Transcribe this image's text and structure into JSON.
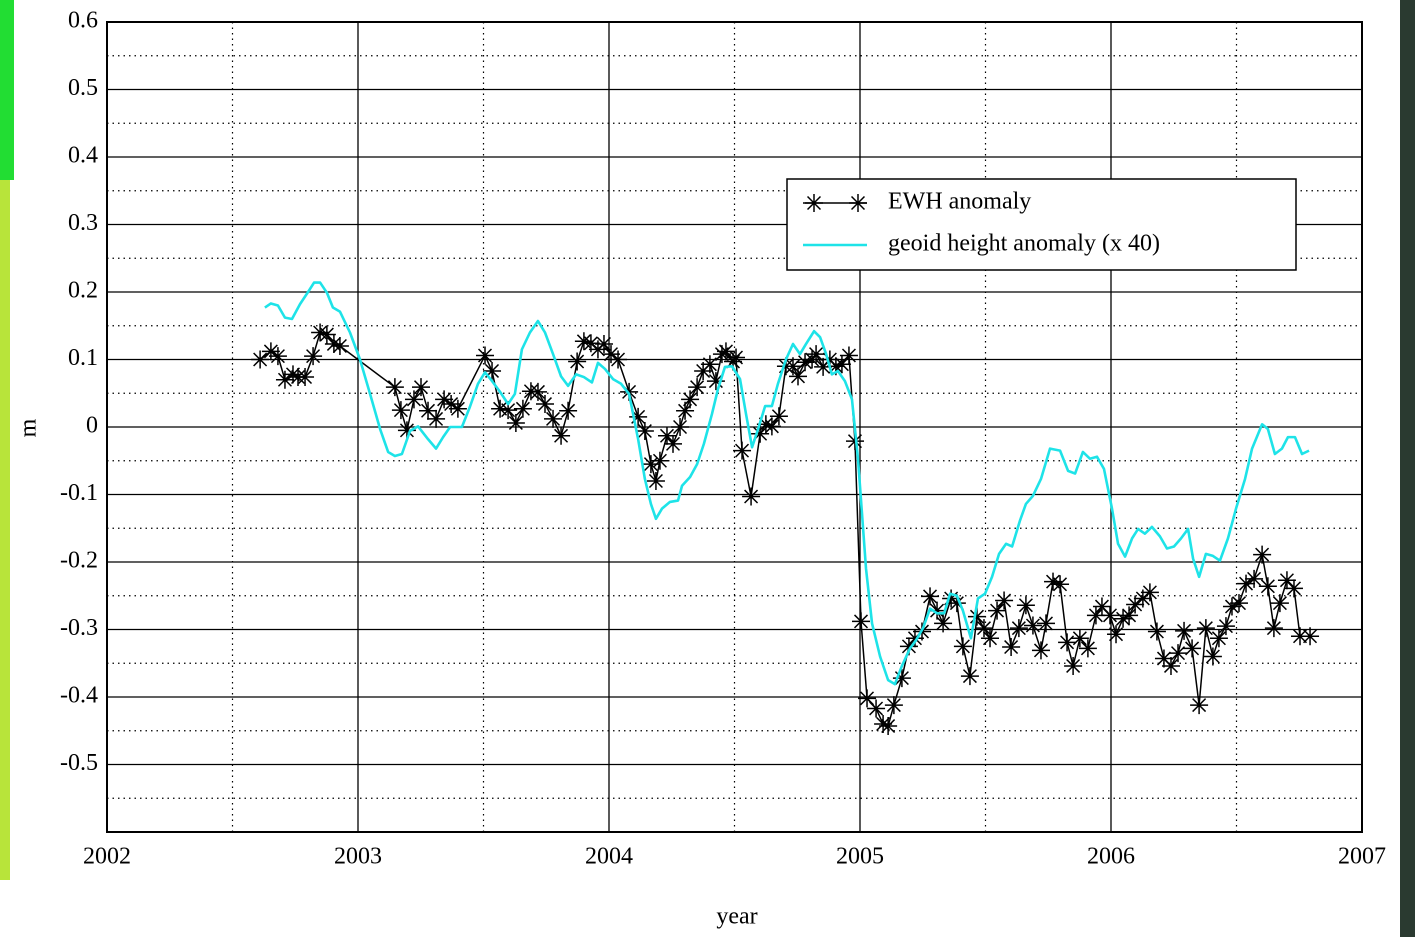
{
  "chart_data": {
    "type": "line",
    "x_label": "year",
    "y_label": "m",
    "xlim": [
      2002,
      2007
    ],
    "xticks": [
      2002,
      2003,
      2004,
      2005,
      2006,
      2007
    ],
    "ylim": [
      -0.6,
      0.6
    ],
    "yticks": [
      -0.5,
      -0.4,
      -0.3,
      -0.2,
      -0.1,
      0,
      0.1,
      0.2,
      0.3,
      0.4,
      0.5,
      0.6
    ],
    "grid": true,
    "minor_grid": true,
    "legend": "upper right",
    "series": [
      {
        "name": "EWH anomaly",
        "color": "#000000",
        "marker": "star",
        "x": [
          2002.61,
          2002.653,
          2002.681,
          2002.709,
          2002.741,
          2002.761,
          2002.789,
          2002.821,
          2002.849,
          2002.876,
          2002.904,
          2002.928,
          2003.147,
          2003.171,
          2003.195,
          2003.223,
          2003.251,
          2003.279,
          2003.311,
          2003.343,
          2003.371,
          2003.398,
          2003.506,
          2003.534,
          2003.566,
          2003.598,
          2003.629,
          2003.657,
          2003.689,
          2003.717,
          2003.745,
          2003.777,
          2003.809,
          2003.837,
          2003.873,
          2003.9,
          2003.928,
          2003.956,
          2003.98,
          2004.008,
          2004.036,
          2004.08,
          2004.116,
          2004.143,
          2004.167,
          2004.187,
          2004.203,
          2004.231,
          2004.255,
          2004.283,
          2004.303,
          2004.323,
          2004.351,
          2004.375,
          2004.402,
          2004.426,
          2004.45,
          2004.466,
          2004.494,
          2004.506,
          2004.53,
          2004.566,
          2004.602,
          2004.625,
          2004.649,
          2004.677,
          2004.705,
          2004.733,
          2004.753,
          2004.781,
          2004.809,
          2004.825,
          2004.853,
          2004.88,
          2004.904,
          2004.928,
          2004.956,
          2004.98,
          2005.004,
          2005.028,
          2005.064,
          2005.092,
          2005.112,
          2005.135,
          2005.167,
          2005.195,
          2005.219,
          2005.247,
          2005.279,
          2005.307,
          2005.331,
          2005.363,
          2005.386,
          2005.41,
          2005.438,
          2005.466,
          2005.494,
          2005.518,
          2005.546,
          2005.574,
          2005.602,
          2005.633,
          2005.661,
          2005.689,
          2005.721,
          2005.741,
          2005.769,
          2005.797,
          2005.825,
          2005.849,
          2005.876,
          2005.908,
          2005.94,
          2005.964,
          2005.996,
          2006.02,
          2006.048,
          2006.072,
          2006.096,
          2006.127,
          2006.155,
          2006.183,
          2006.211,
          2006.239,
          2006.267,
          2006.291,
          2006.323,
          2006.351,
          2006.378,
          2006.406,
          2006.43,
          2006.458,
          2006.482,
          2006.51,
          2006.538,
          2006.57,
          2006.602,
          2006.625,
          2006.649,
          2006.673,
          2006.701,
          2006.729,
          2006.753,
          2006.793
        ],
        "values": [
          0.1,
          0.112,
          0.105,
          0.07,
          0.078,
          0.074,
          0.074,
          0.105,
          0.14,
          0.137,
          0.123,
          0.12,
          0.059,
          0.025,
          -0.005,
          0.041,
          0.059,
          0.024,
          0.012,
          0.041,
          0.034,
          0.027,
          0.106,
          0.083,
          0.027,
          0.025,
          0.006,
          0.027,
          0.053,
          0.052,
          0.034,
          0.012,
          -0.013,
          0.024,
          0.097,
          0.127,
          0.124,
          0.115,
          0.123,
          0.108,
          0.1,
          0.052,
          0.015,
          -0.006,
          -0.055,
          -0.08,
          -0.05,
          -0.013,
          -0.025,
          0,
          0.024,
          0.041,
          0.059,
          0.083,
          0.093,
          0.068,
          0.108,
          0.112,
          0.097,
          0.103,
          -0.035,
          -0.103,
          -0.01,
          0.004,
          0.001,
          0.016,
          0.09,
          0.09,
          0.075,
          0.096,
          0.1,
          0.108,
          0.089,
          0.1,
          0.09,
          0.093,
          0.106,
          -0.021,
          -0.288,
          -0.402,
          -0.417,
          -0.44,
          -0.443,
          -0.412,
          -0.372,
          -0.325,
          -0.313,
          -0.303,
          -0.251,
          -0.272,
          -0.291,
          -0.254,
          -0.261,
          -0.325,
          -0.369,
          -0.281,
          -0.298,
          -0.313,
          -0.272,
          -0.257,
          -0.326,
          -0.298,
          -0.264,
          -0.294,
          -0.331,
          -0.291,
          -0.229,
          -0.233,
          -0.319,
          -0.354,
          -0.313,
          -0.328,
          -0.279,
          -0.266,
          -0.279,
          -0.307,
          -0.284,
          -0.279,
          -0.263,
          -0.254,
          -0.245,
          -0.303,
          -0.343,
          -0.354,
          -0.335,
          -0.302,
          -0.328,
          -0.412,
          -0.298,
          -0.34,
          -0.313,
          -0.295,
          -0.266,
          -0.261,
          -0.232,
          -0.225,
          -0.189,
          -0.236,
          -0.298,
          -0.261,
          -0.227,
          -0.239,
          -0.31,
          -0.31
        ]
      },
      {
        "name": "geoid height anomaly (x 40)",
        "color": "#1ee3e8",
        "x": [
          2002.629,
          2002.653,
          2002.681,
          2002.709,
          2002.737,
          2002.769,
          2002.801,
          2002.825,
          2002.849,
          2002.876,
          2002.9,
          2002.928,
          2002.968,
          2003.008,
          2003.048,
          2003.088,
          2003.12,
          2003.147,
          2003.175,
          2003.207,
          2003.239,
          2003.279,
          2003.311,
          2003.339,
          2003.367,
          2003.414,
          2003.446,
          2003.478,
          2003.506,
          2003.534,
          2003.566,
          2003.598,
          2003.625,
          2003.653,
          2003.685,
          2003.717,
          2003.745,
          2003.777,
          2003.809,
          2003.837,
          2003.869,
          2003.9,
          2003.932,
          2003.956,
          2003.984,
          2004.016,
          2004.048,
          2004.08,
          2004.116,
          2004.143,
          2004.167,
          2004.187,
          2004.211,
          2004.243,
          2004.275,
          2004.291,
          2004.323,
          2004.351,
          2004.378,
          2004.41,
          2004.434,
          2004.462,
          2004.49,
          2004.522,
          2004.546,
          2004.57,
          2004.594,
          2004.622,
          2004.649,
          2004.673,
          2004.705,
          2004.733,
          2004.761,
          2004.785,
          2004.817,
          2004.841,
          2004.865,
          2004.888,
          2004.912,
          2004.94,
          2004.968,
          2004.992,
          2005.024,
          2005.048,
          2005.08,
          2005.112,
          2005.139,
          2005.167,
          2005.199,
          2005.223,
          2005.251,
          2005.279,
          2005.307,
          2005.335,
          2005.359,
          2005.386,
          2005.41,
          2005.442,
          2005.47,
          2005.498,
          2005.526,
          2005.554,
          2005.582,
          2005.606,
          2005.637,
          2005.661,
          2005.689,
          2005.721,
          2005.757,
          2005.797,
          2005.829,
          2005.857,
          2005.888,
          2005.916,
          2005.944,
          2005.972,
          2006.004,
          2006.028,
          2006.056,
          2006.084,
          2006.108,
          2006.135,
          2006.163,
          2006.195,
          2006.223,
          2006.251,
          2006.279,
          2006.307,
          2006.327,
          2006.351,
          2006.378,
          2006.406,
          2006.434,
          2006.466,
          2006.498,
          2006.534,
          2006.562,
          2006.602,
          2006.625,
          2006.653,
          2006.681,
          2006.705,
          2006.733,
          2006.761,
          2006.789
        ],
        "values": [
          0.177,
          0.183,
          0.18,
          0.162,
          0.16,
          0.182,
          0.2,
          0.214,
          0.214,
          0.199,
          0.177,
          0.171,
          0.14,
          0.1,
          0.049,
          -0.003,
          -0.037,
          -0.043,
          -0.04,
          -0.006,
          0.001,
          -0.018,
          -0.032,
          -0.015,
          0,
          0,
          0.03,
          0.064,
          0.081,
          0.068,
          0.052,
          0.034,
          0.049,
          0.115,
          0.14,
          0.157,
          0.14,
          0.108,
          0.075,
          0.061,
          0.078,
          0.074,
          0.066,
          0.095,
          0.086,
          0.071,
          0.064,
          0.049,
          -0.018,
          -0.077,
          -0.114,
          -0.136,
          -0.121,
          -0.111,
          -0.109,
          -0.087,
          -0.074,
          -0.055,
          -0.025,
          0.019,
          0.056,
          0.089,
          0.09,
          0.071,
          0.019,
          -0.03,
          -0.003,
          0.031,
          0.031,
          0.064,
          0.1,
          0.123,
          0.108,
          0.123,
          0.142,
          0.133,
          0.108,
          0.078,
          0.083,
          0.068,
          0.041,
          -0.047,
          -0.21,
          -0.291,
          -0.34,
          -0.375,
          -0.381,
          -0.354,
          -0.328,
          -0.316,
          -0.298,
          -0.269,
          -0.276,
          -0.276,
          -0.247,
          -0.25,
          -0.272,
          -0.313,
          -0.254,
          -0.247,
          -0.222,
          -0.188,
          -0.173,
          -0.177,
          -0.139,
          -0.114,
          -0.102,
          -0.077,
          -0.032,
          -0.035,
          -0.065,
          -0.069,
          -0.037,
          -0.047,
          -0.044,
          -0.062,
          -0.121,
          -0.173,
          -0.192,
          -0.165,
          -0.151,
          -0.158,
          -0.148,
          -0.162,
          -0.18,
          -0.177,
          -0.165,
          -0.151,
          -0.195,
          -0.222,
          -0.188,
          -0.191,
          -0.198,
          -0.165,
          -0.121,
          -0.077,
          -0.032,
          0.004,
          -0.003,
          -0.04,
          -0.032,
          -0.015,
          -0.015,
          -0.04,
          -0.035
        ]
      }
    ]
  }
}
